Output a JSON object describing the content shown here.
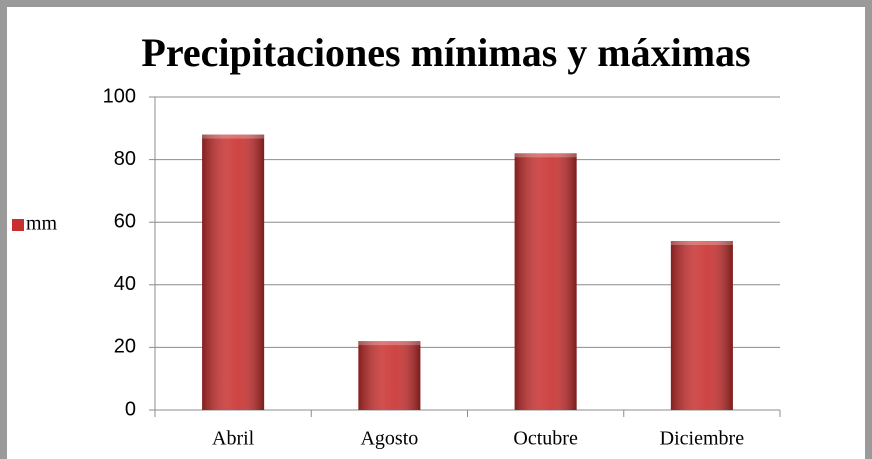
{
  "chart_data": {
    "type": "bar",
    "title": "Precipitaciones mínimas y máximas",
    "categories": [
      "Abril",
      "Agosto",
      "Octubre",
      "Diciembre"
    ],
    "series": [
      {
        "name": "mm",
        "color": "#c8302f",
        "values": [
          88,
          22,
          82,
          54
        ]
      }
    ],
    "ylim": [
      0,
      100
    ],
    "yticks": [
      0,
      20,
      40,
      60,
      80,
      100
    ],
    "grid": true,
    "legend": "left"
  }
}
